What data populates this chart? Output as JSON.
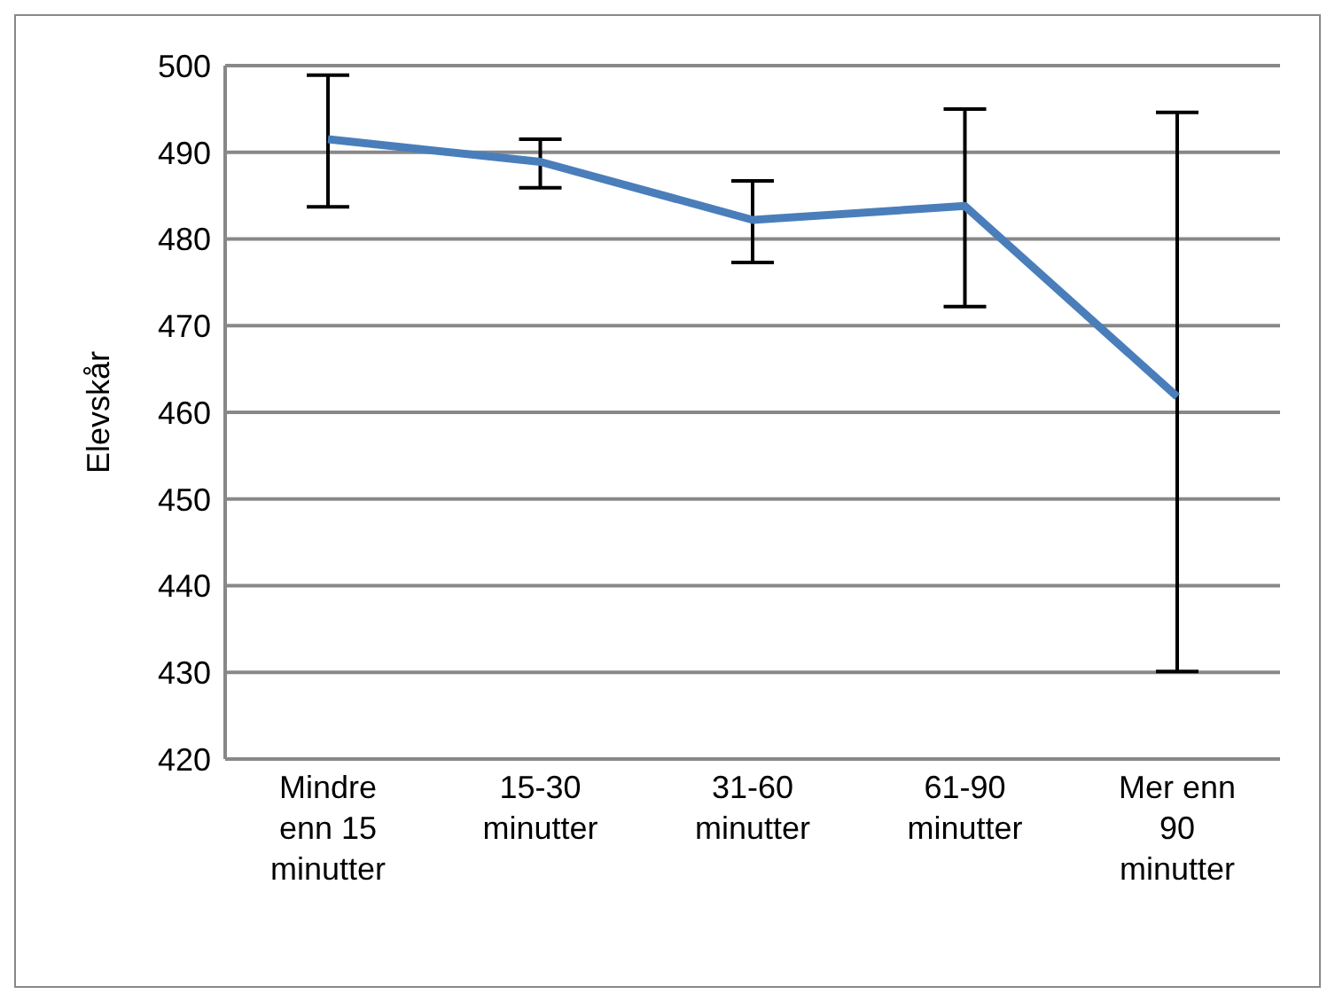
{
  "chart_data": {
    "type": "line",
    "ylabel": "Elevskår",
    "categories": [
      "Mindre enn 15 minutter",
      "15-30 minutter",
      "31-60 minutter",
      "61-90 minutter",
      "Mer enn 90 minutter"
    ],
    "series": [
      {
        "color": "#4a7ebb",
        "values": [
          491.5,
          488.9,
          482.2,
          483.8,
          461.8
        ],
        "errors": [
          [
            483.7,
            498.9
          ],
          [
            485.9,
            491.5
          ],
          [
            477.3,
            486.7
          ],
          [
            472.2,
            495.0
          ],
          [
            430.1,
            494.6
          ]
        ]
      }
    ],
    "ylim": [
      420,
      500
    ],
    "yticks": [
      420,
      430,
      440,
      450,
      460,
      470,
      480,
      490,
      500
    ],
    "grid": "y",
    "legend": false,
    "marker": "none",
    "line_style": "solid"
  }
}
